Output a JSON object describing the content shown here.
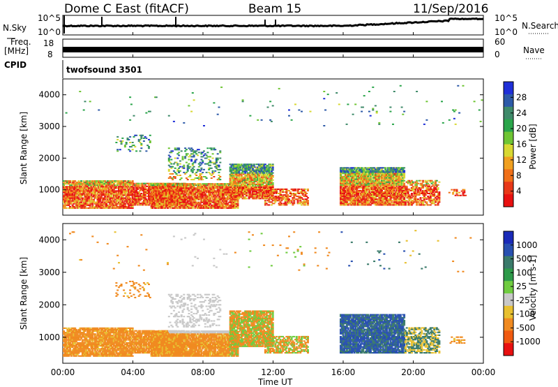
{
  "header": {
    "station": "Dome C East (fitACF)",
    "beam": "Beam 15",
    "date": "11/Sep/2016"
  },
  "panels": {
    "nsky": {
      "label": "N.Sky",
      "right_label": "N.Search",
      "left_ticks": [
        "10^5",
        "10^0"
      ],
      "right_ticks": [
        "10^5",
        "10^0"
      ]
    },
    "freq": {
      "label_line1": "Freq.",
      "label_line2": "[MHz]",
      "right_label": "Nave",
      "left_ticks": [
        "18",
        "8"
      ],
      "right_ticks": [
        "60",
        "0"
      ]
    },
    "cpid": {
      "label": "CPID",
      "program": "twofsound 3501"
    }
  },
  "chart_data": [
    {
      "type": "heatmap",
      "name": "power",
      "ylabel": "Slant Range [km]",
      "ylim": [
        200,
        4500
      ],
      "yticks": [
        "1000",
        "2000",
        "3000",
        "4000"
      ],
      "colorbar": {
        "title": "Power [dB]",
        "labels": [
          "4",
          "8",
          "12",
          "16",
          "20",
          "24",
          "28"
        ],
        "colors": [
          "#1f2fd8",
          "#2d5aa8",
          "#3f8a6a",
          "#2aa54a",
          "#6fc534",
          "#d8d832",
          "#f0a020",
          "#f07018",
          "#e83818",
          "#e81010"
        ]
      }
    },
    {
      "type": "heatmap",
      "name": "velocity",
      "ylabel": "Slant Range [km]",
      "ylim": [
        200,
        4500
      ],
      "yticks": [
        "1000",
        "2000",
        "3000",
        "4000"
      ],
      "colorbar": {
        "title": "Velocity [m s-1]",
        "labels": [
          "1000",
          "500",
          "100",
          "25",
          "-25",
          "-100",
          "-500",
          "-1000"
        ],
        "colors": [
          "#1a2ab8",
          "#2850b0",
          "#3a7a6a",
          "#2e9a4a",
          "#70cc40",
          "#c8c8c8",
          "#e8c030",
          "#f08a20",
          "#f05a10",
          "#e81010"
        ]
      }
    }
  ],
  "xaxis": {
    "label": "Time UT",
    "ticks": [
      "00:00",
      "04:00",
      "08:00",
      "12:00",
      "16:00",
      "20:00",
      "00:00"
    ]
  }
}
